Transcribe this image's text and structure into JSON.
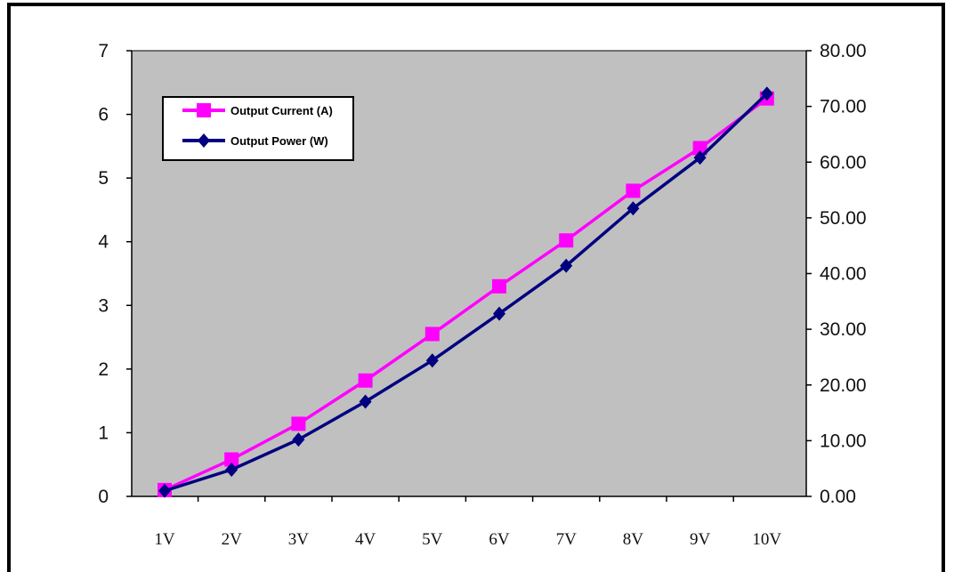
{
  "chart_data": {
    "type": "line",
    "title": "",
    "xlabel": "",
    "ylabel_left": "",
    "ylabel_right": "",
    "categories": [
      "1V",
      "2V",
      "3V",
      "4V",
      "5V",
      "6V",
      "7V",
      "8V",
      "9V",
      "10V"
    ],
    "y_left_ticks": [
      "0",
      "1",
      "2",
      "3",
      "4",
      "5",
      "6",
      "7"
    ],
    "y_right_ticks": [
      "0.00",
      "10.00",
      "20.00",
      "30.00",
      "40.00",
      "50.00",
      "60.00",
      "70.00",
      "80.00"
    ],
    "ylim_left": [
      0,
      7
    ],
    "ylim_right": [
      0,
      80
    ],
    "grid": false,
    "plot_background": "#c0c0c0",
    "legend_position": "top-left",
    "series": [
      {
        "name": "Output Current (A)",
        "axis": "left",
        "color": "#ff00ff",
        "marker": "square",
        "values": [
          0.1,
          0.58,
          1.14,
          1.82,
          2.55,
          3.3,
          4.02,
          4.8,
          5.47,
          6.25
        ]
      },
      {
        "name": "Output Power (W)",
        "axis": "right",
        "color": "#000080",
        "marker": "diamond",
        "values": [
          1.0,
          4.8,
          10.2,
          17.0,
          24.4,
          32.8,
          41.4,
          51.7,
          60.8,
          72.3
        ]
      }
    ]
  }
}
